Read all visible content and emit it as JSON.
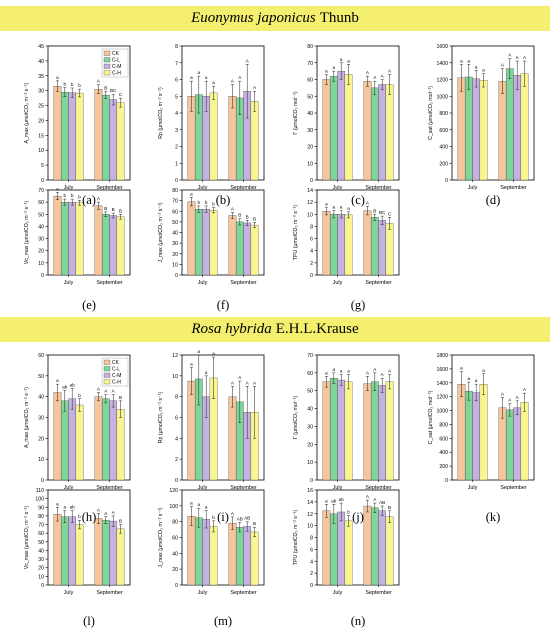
{
  "banners": {
    "top": {
      "species": "Euonymus japonicus",
      "author": "Thunb"
    },
    "bottom": {
      "species": "Rosa hybrida",
      "author": "E.H.L.Krause"
    }
  },
  "legend_entries": [
    "CK",
    "C-L",
    "C-M",
    "C-H"
  ],
  "colors": {
    "CK": "#f7c59b",
    "C-L": "#7fd59a",
    "C-M": "#c6b1e3",
    "C-H": "#f9f58f",
    "banner": "#f4ef6e"
  },
  "panel_labels": [
    "(a)",
    "(b)",
    "(c)",
    "(d)",
    "(e)",
    "(f)",
    "(g)",
    "(h)",
    "(i)",
    "(j)",
    "(k)",
    "(l)",
    "(m)",
    "(n)"
  ],
  "chart_data": [
    {
      "type": "bar",
      "panel": "a",
      "categories": [
        "July",
        "September"
      ],
      "ylabel": "A_max (μmolCO₂ m⁻² s⁻¹)",
      "ylim": [
        0,
        45
      ],
      "yticks": [
        0,
        5,
        10,
        15,
        20,
        25,
        30,
        35,
        40,
        45
      ],
      "series": [
        {
          "name": "CK",
          "values": [
            31.5,
            30.5
          ],
          "errors": [
            1.8,
            1.5
          ],
          "letters": [
            "a",
            "A"
          ]
        },
        {
          "name": "C-L",
          "values": [
            29.5,
            28.5
          ],
          "errors": [
            1.5,
            1.2
          ],
          "letters": [
            "b",
            "B"
          ]
        },
        {
          "name": "C-M",
          "values": [
            29.3,
            27.0
          ],
          "errors": [
            1.6,
            1.8
          ],
          "letters": [
            "b",
            "BC"
          ]
        },
        {
          "name": "C-H",
          "values": [
            29.2,
            26.0
          ],
          "errors": [
            1.3,
            1.5
          ],
          "letters": [
            "b",
            "C"
          ]
        }
      ]
    },
    {
      "type": "bar",
      "panel": "b",
      "categories": [
        "July",
        "September"
      ],
      "ylabel": "Rp (μmolCO₂ m⁻² s⁻¹)",
      "ylim": [
        0,
        8
      ],
      "yticks": [
        0,
        1,
        2,
        3,
        4,
        5,
        6,
        7,
        8
      ],
      "series": [
        {
          "name": "CK",
          "values": [
            5.0,
            5.0
          ],
          "errors": [
            0.9,
            0.7
          ],
          "letters": [
            "a",
            "A"
          ]
        },
        {
          "name": "C-L",
          "values": [
            5.1,
            4.9
          ],
          "errors": [
            1.1,
            1.0
          ],
          "letters": [
            "a",
            "A"
          ]
        },
        {
          "name": "C-M",
          "values": [
            5.0,
            5.3
          ],
          "errors": [
            0.9,
            1.6
          ],
          "letters": [
            "a",
            "A"
          ]
        },
        {
          "name": "C-H",
          "values": [
            5.2,
            4.7
          ],
          "errors": [
            0.4,
            0.6
          ],
          "letters": [
            "a",
            "A"
          ]
        }
      ]
    },
    {
      "type": "bar",
      "panel": "c",
      "categories": [
        "July",
        "September"
      ],
      "ylabel": "Γ (μmolCO₂ mol⁻¹)",
      "ylim": [
        0,
        80
      ],
      "yticks": [
        0,
        10,
        20,
        30,
        40,
        50,
        60,
        70,
        80
      ],
      "series": [
        {
          "name": "CK",
          "values": [
            60,
            59
          ],
          "errors": [
            3,
            3
          ],
          "letters": [
            "a",
            "A"
          ]
        },
        {
          "name": "C-L",
          "values": [
            62,
            55
          ],
          "errors": [
            3,
            4
          ],
          "letters": [
            "a",
            "A"
          ]
        },
        {
          "name": "C-M",
          "values": [
            65,
            57
          ],
          "errors": [
            5,
            3
          ],
          "letters": [
            "a",
            "A"
          ]
        },
        {
          "name": "C-H",
          "values": [
            63,
            57
          ],
          "errors": [
            6,
            6
          ],
          "letters": [
            "a",
            "A"
          ]
        }
      ]
    },
    {
      "type": "bar",
      "panel": "d",
      "categories": [
        "July",
        "September"
      ],
      "ylabel": "C_sat (μmolCO₂ mol⁻¹)",
      "ylim": [
        0,
        1600
      ],
      "yticks": [
        0,
        200,
        400,
        600,
        800,
        1000,
        1200,
        1400,
        1600
      ],
      "series": [
        {
          "name": "CK",
          "values": [
            1220,
            1180
          ],
          "errors": [
            160,
            150
          ],
          "letters": [
            "a",
            "A"
          ]
        },
        {
          "name": "C-L",
          "values": [
            1230,
            1330
          ],
          "errors": [
            150,
            120
          ],
          "letters": [
            "a",
            "A"
          ]
        },
        {
          "name": "C-M",
          "values": [
            1210,
            1250
          ],
          "errors": [
            100,
            170
          ],
          "letters": [
            "a",
            "A"
          ]
        },
        {
          "name": "C-H",
          "values": [
            1190,
            1270
          ],
          "errors": [
            80,
            150
          ],
          "letters": [
            "a",
            "A"
          ]
        }
      ]
    },
    {
      "type": "bar",
      "panel": "e",
      "categories": [
        "July",
        "September"
      ],
      "ylabel": "Vc_max (μmolCO₂ m⁻² s⁻¹)",
      "ylim": [
        0,
        70
      ],
      "yticks": [
        0,
        10,
        20,
        30,
        40,
        50,
        60,
        70
      ],
      "series": [
        {
          "name": "CK",
          "values": [
            65,
            57
          ],
          "errors": [
            3,
            3
          ],
          "letters": [
            "a",
            "A"
          ]
        },
        {
          "name": "C-L",
          "values": [
            60,
            50
          ],
          "errors": [
            2.5,
            2
          ],
          "letters": [
            "b",
            "B"
          ]
        },
        {
          "name": "C-M",
          "values": [
            60,
            49
          ],
          "errors": [
            2.5,
            2
          ],
          "letters": [
            "b",
            "B"
          ]
        },
        {
          "name": "C-H",
          "values": [
            59.5,
            48
          ],
          "errors": [
            2,
            2
          ],
          "letters": [
            "b",
            "B"
          ]
        }
      ]
    },
    {
      "type": "bar",
      "panel": "f",
      "categories": [
        "July",
        "September"
      ],
      "ylabel": "J_max (μmolCO₂ m⁻² s⁻¹)",
      "ylim": [
        0,
        80
      ],
      "yticks": [
        0,
        10,
        20,
        30,
        40,
        50,
        60,
        70,
        80
      ],
      "series": [
        {
          "name": "CK",
          "values": [
            69,
            56
          ],
          "errors": [
            4,
            3
          ],
          "letters": [
            "a",
            "A"
          ]
        },
        {
          "name": "C-L",
          "values": [
            62,
            50
          ],
          "errors": [
            3,
            3
          ],
          "letters": [
            "b",
            "B"
          ]
        },
        {
          "name": "C-M",
          "values": [
            62,
            49
          ],
          "errors": [
            3,
            2.5
          ],
          "letters": [
            "b",
            "B"
          ]
        },
        {
          "name": "C-H",
          "values": [
            61,
            47
          ],
          "errors": [
            2.5,
            2.5
          ],
          "letters": [
            "b",
            "B"
          ]
        }
      ]
    },
    {
      "type": "bar",
      "panel": "g",
      "categories": [
        "July",
        "September"
      ],
      "ylabel": "TPU (μmolCO₂ m⁻² s⁻¹)",
      "ylim": [
        0,
        14
      ],
      "yticks": [
        0,
        2,
        4,
        6,
        8,
        10,
        12,
        14
      ],
      "series": [
        {
          "name": "CK",
          "values": [
            10.5,
            10.6
          ],
          "errors": [
            0.6,
            0.7
          ],
          "letters": [
            "a",
            "A"
          ]
        },
        {
          "name": "C-L",
          "values": [
            10.0,
            9.5
          ],
          "errors": [
            0.6,
            0.5
          ],
          "letters": [
            "a",
            "B"
          ]
        },
        {
          "name": "C-M",
          "values": [
            10.0,
            9.0
          ],
          "errors": [
            0.6,
            0.7
          ],
          "letters": [
            "a",
            "BC"
          ]
        },
        {
          "name": "C-H",
          "values": [
            9.9,
            8.5
          ],
          "errors": [
            0.5,
            1.0
          ],
          "letters": [
            "a",
            "C"
          ]
        }
      ]
    },
    {
      "type": "bar",
      "panel": "h",
      "categories": [
        "July",
        "September"
      ],
      "ylabel": "A_max (μmolCO₂ m⁻² s⁻¹)",
      "ylim": [
        0,
        60
      ],
      "yticks": [
        0,
        10,
        20,
        30,
        40,
        50,
        60
      ],
      "series": [
        {
          "name": "CK",
          "values": [
            42,
            40
          ],
          "errors": [
            4,
            2
          ],
          "letters": [
            "a",
            "A"
          ]
        },
        {
          "name": "C-L",
          "values": [
            38,
            39
          ],
          "errors": [
            5,
            2
          ],
          "letters": [
            "ab",
            "A"
          ]
        },
        {
          "name": "C-M",
          "values": [
            39,
            38
          ],
          "errors": [
            5,
            3
          ],
          "letters": [
            "ab",
            "A"
          ]
        },
        {
          "name": "C-H",
          "values": [
            36,
            34
          ],
          "errors": [
            3,
            4
          ],
          "letters": [
            "b",
            "B"
          ]
        }
      ]
    },
    {
      "type": "bar",
      "panel": "i",
      "categories": [
        "July",
        "September"
      ],
      "ylabel": "Rp (μmolCO₂ m⁻² s⁻¹)",
      "ylim": [
        0,
        12
      ],
      "yticks": [
        0,
        2,
        4,
        6,
        8,
        10,
        12
      ],
      "series": [
        {
          "name": "CK",
          "values": [
            9.5,
            8.0
          ],
          "errors": [
            1.3,
            1.0
          ],
          "letters": [
            "a",
            "A"
          ]
        },
        {
          "name": "C-L",
          "values": [
            9.7,
            7.5
          ],
          "errors": [
            2.5,
            2.0
          ],
          "letters": [
            "a",
            "A"
          ]
        },
        {
          "name": "C-M",
          "values": [
            8.0,
            6.5
          ],
          "errors": [
            2.0,
            2.5
          ],
          "letters": [
            "a",
            "A"
          ]
        },
        {
          "name": "C-H",
          "values": [
            9.8,
            6.5
          ],
          "errors": [
            2.0,
            2.5
          ],
          "letters": [
            "a",
            "A"
          ]
        }
      ]
    },
    {
      "type": "bar",
      "panel": "j",
      "categories": [
        "July",
        "September"
      ],
      "ylabel": "Γ (μmolCO₂ mol⁻¹)",
      "ylim": [
        0,
        70
      ],
      "yticks": [
        0,
        10,
        20,
        30,
        40,
        50,
        60,
        70
      ],
      "series": [
        {
          "name": "CK",
          "values": [
            55,
            54
          ],
          "errors": [
            3,
            4
          ],
          "letters": [
            "a",
            "A"
          ]
        },
        {
          "name": "C-L",
          "values": [
            57,
            55
          ],
          "errors": [
            3,
            5
          ],
          "letters": [
            "a",
            "A"
          ]
        },
        {
          "name": "C-M",
          "values": [
            56,
            53
          ],
          "errors": [
            3,
            4
          ],
          "letters": [
            "a",
            "A"
          ]
        },
        {
          "name": "C-H",
          "values": [
            55,
            55
          ],
          "errors": [
            4,
            4
          ],
          "letters": [
            "a",
            "A"
          ]
        }
      ]
    },
    {
      "type": "bar",
      "panel": "k",
      "categories": [
        "July",
        "September"
      ],
      "ylabel": "C_sat (μmolCO₂ mol⁻¹)",
      "ylim": [
        0,
        1800
      ],
      "yticks": [
        0,
        200,
        400,
        600,
        800,
        1000,
        1200,
        1400,
        1600,
        1800
      ],
      "series": [
        {
          "name": "CK",
          "values": [
            1380,
            1040
          ],
          "errors": [
            180,
            150
          ],
          "letters": [
            "a",
            "A"
          ]
        },
        {
          "name": "C-L",
          "values": [
            1280,
            1010
          ],
          "errors": [
            130,
            90
          ],
          "letters": [
            "a",
            "A"
          ]
        },
        {
          "name": "C-M",
          "values": [
            1260,
            1040
          ],
          "errors": [
            120,
            100
          ],
          "letters": [
            "a",
            "A"
          ]
        },
        {
          "name": "C-H",
          "values": [
            1380,
            1120
          ],
          "errors": [
            150,
            130
          ],
          "letters": [
            "a",
            "A"
          ]
        }
      ]
    },
    {
      "type": "bar",
      "panel": "l",
      "categories": [
        "July",
        "September"
      ],
      "ylabel": "Vc_max (μmolCO₂ m⁻² s⁻¹)",
      "ylim": [
        0,
        110
      ],
      "yticks": [
        0,
        10,
        20,
        30,
        40,
        50,
        60,
        70,
        80,
        90,
        100,
        110
      ],
      "series": [
        {
          "name": "CK",
          "values": [
            82,
            77
          ],
          "errors": [
            8,
            6
          ],
          "letters": [
            "a",
            "A"
          ]
        },
        {
          "name": "C-L",
          "values": [
            79,
            75
          ],
          "errors": [
            7,
            4
          ],
          "letters": [
            "a",
            "A"
          ]
        },
        {
          "name": "C-M",
          "values": [
            79,
            74
          ],
          "errors": [
            7,
            6
          ],
          "letters": [
            "ab",
            "A"
          ]
        },
        {
          "name": "C-H",
          "values": [
            70,
            65
          ],
          "errors": [
            5,
            5
          ],
          "letters": [
            "b",
            "B"
          ]
        }
      ]
    },
    {
      "type": "bar",
      "panel": "m",
      "categories": [
        "July",
        "September"
      ],
      "ylabel": "J_max (μmolCO₂ m⁻² s⁻¹)",
      "ylim": [
        0,
        120
      ],
      "yticks": [
        0,
        20,
        40,
        60,
        80,
        100,
        120
      ],
      "series": [
        {
          "name": "CK",
          "values": [
            87,
            78
          ],
          "errors": [
            12,
            8
          ],
          "letters": [
            "a",
            "A"
          ]
        },
        {
          "name": "C-L",
          "values": [
            85,
            73
          ],
          "errors": [
            12,
            6
          ],
          "letters": [
            "a",
            "AB"
          ]
        },
        {
          "name": "C-M",
          "values": [
            83,
            74
          ],
          "errors": [
            11,
            6
          ],
          "letters": [
            "a",
            "AB"
          ]
        },
        {
          "name": "C-H",
          "values": [
            74,
            67
          ],
          "errors": [
            7,
            6
          ],
          "letters": [
            "b",
            "B"
          ]
        }
      ]
    },
    {
      "type": "bar",
      "panel": "n",
      "categories": [
        "July",
        "September"
      ],
      "ylabel": "TPU (μmolCO₂ m⁻² s⁻¹)",
      "ylim": [
        0,
        16
      ],
      "yticks": [
        0,
        2,
        4,
        6,
        8,
        10,
        12,
        14,
        16
      ],
      "series": [
        {
          "name": "CK",
          "values": [
            12.5,
            13.3
          ],
          "errors": [
            1.1,
            1.0
          ],
          "letters": [
            "a",
            "A"
          ]
        },
        {
          "name": "C-L",
          "values": [
            12.0,
            13.0
          ],
          "errors": [
            1.6,
            0.8
          ],
          "letters": [
            "ab",
            "A"
          ]
        },
        {
          "name": "C-M",
          "values": [
            12.3,
            12.5
          ],
          "errors": [
            1.5,
            0.8
          ],
          "letters": [
            "ab",
            "AB"
          ]
        },
        {
          "name": "C-H",
          "values": [
            10.8,
            11.5
          ],
          "errors": [
            0.9,
            1.0
          ],
          "letters": [
            "b",
            "B"
          ]
        }
      ]
    }
  ]
}
